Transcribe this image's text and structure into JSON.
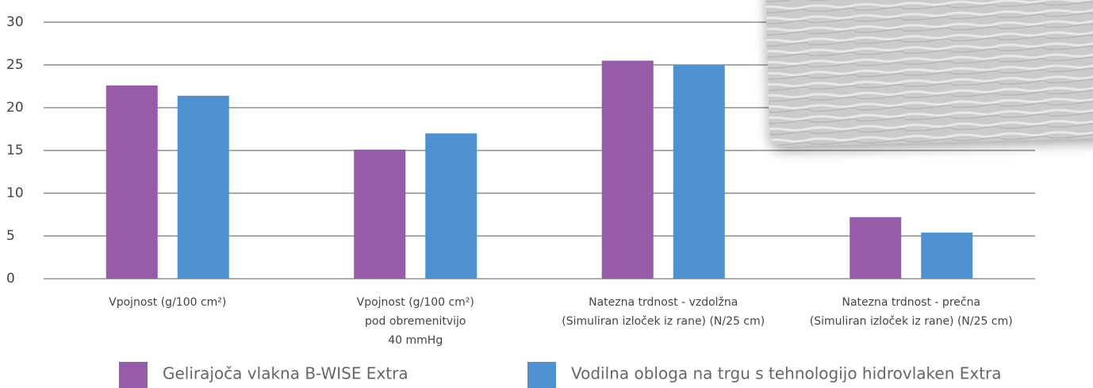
{
  "chart_data": {
    "type": "bar",
    "categories": [
      [
        "Vpojnost (g/100 cm²)"
      ],
      [
        "Vpojnost (g/100 cm²)",
        "pod obremenitvijo",
        "40 mmHg"
      ],
      [
        "Natezna trdnost - vzdolžna",
        "(Simuliran  izloček iz rane) (N/25 cm)"
      ],
      [
        "Natezna trdnost - prečna",
        "(Simuliran  izloček iz rane) (N/25 cm)"
      ]
    ],
    "series": [
      {
        "name": "Gelirajoča vlakna B-WISE Extra",
        "color": "#975ca8",
        "values": [
          22.6,
          15.1,
          25.5,
          7.2
        ]
      },
      {
        "name": "Vodilna obloga na trgu s tehnologijo hidrovlaken Extra",
        "color": "#4f91d0",
        "values": [
          21.4,
          17.0,
          25.0,
          5.4
        ]
      }
    ],
    "ylim": [
      0,
      30
    ],
    "yticks": [
      0,
      5,
      10,
      15,
      20,
      25,
      30
    ],
    "grid": true,
    "legend": "bottom"
  }
}
